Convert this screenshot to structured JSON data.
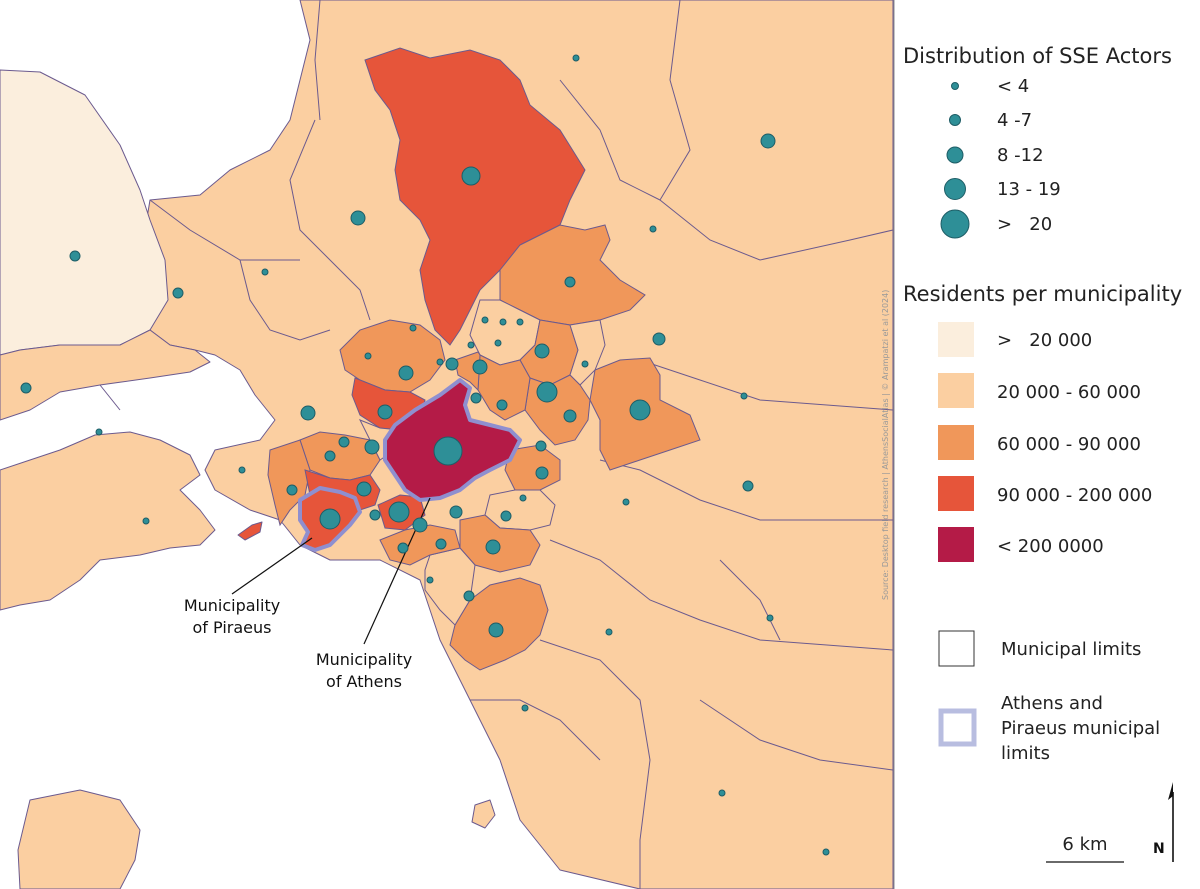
{
  "legend": {
    "sse_title": "Distribution of SSE Actors",
    "sse_classes": [
      "< 4",
      "4 -7",
      "8 -12",
      "13 - 19",
      ">   20"
    ],
    "residents_title": "Residents per municipality",
    "residents_classes": [
      {
        "label": ">   20 000",
        "color": "#fbeedd"
      },
      {
        "label": "20 000 - 60 000",
        "color": "#fbcfa1"
      },
      {
        "label": "60 000 - 90 000",
        "color": "#f0975a"
      },
      {
        "label": "90 000 - 200 000",
        "color": "#e6553a"
      },
      {
        "label": "< 200 0000",
        "color": "#b41b47"
      }
    ],
    "municipal_limits": "Municipal limits",
    "athens_piraeus_lines": [
      "Athens and",
      "Piraeus municipal",
      "limits"
    ]
  },
  "callouts": {
    "piraeus": [
      "Municipality",
      "of Piraeus"
    ],
    "athens": [
      "Municipality",
      "of Athens"
    ]
  },
  "scale_bar": "6 km",
  "north": "N",
  "source": "Source: Desktop field research  |  AthensSocialAtlas  |  © Arampatzi et al (2024)",
  "colors": {
    "sea": "#ffffff",
    "border": "#6b5a8e",
    "dot": "#2e8f97",
    "dot_stroke": "#1e5d66",
    "athens_piraeus_outline": "#8f8fcf"
  }
}
